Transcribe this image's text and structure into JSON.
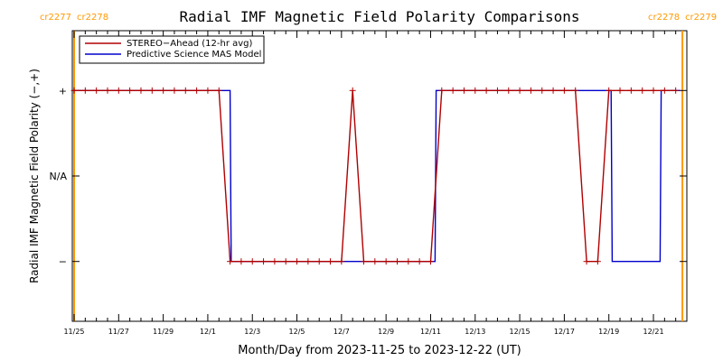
{
  "chart_data": {
    "type": "line",
    "title": "Radial IMF Magnetic Field Polarity Comparisons",
    "xlabel": "Month/Day from 2023-11-25 to 2023-12-22 (UT)",
    "ylabel": "Radial IMF Magnetic Field Polarity (−,+)",
    "xlim": [
      0,
      27.5
    ],
    "ylim": [
      -1.7,
      1.7
    ],
    "x_ticks": [
      {
        "x": 0,
        "label": "11/25"
      },
      {
        "x": 2,
        "label": "11/27"
      },
      {
        "x": 4,
        "label": "11/29"
      },
      {
        "x": 6,
        "label": "12/1"
      },
      {
        "x": 8,
        "label": "12/3"
      },
      {
        "x": 10,
        "label": "12/5"
      },
      {
        "x": 12,
        "label": "12/7"
      },
      {
        "x": 14,
        "label": "12/9"
      },
      {
        "x": 16,
        "label": "12/11"
      },
      {
        "x": 18,
        "label": "12/13"
      },
      {
        "x": 20,
        "label": "12/15"
      },
      {
        "x": 22,
        "label": "12/17"
      },
      {
        "x": 24,
        "label": "12/19"
      },
      {
        "x": 26,
        "label": "12/21"
      }
    ],
    "y_ticks": [
      {
        "y": 1,
        "label": "+"
      },
      {
        "y": 0,
        "label": "N/A"
      },
      {
        "y": -1,
        "label": "−"
      }
    ],
    "carrington": [
      {
        "x": 0,
        "left": "cr2277",
        "right": "cr2278"
      },
      {
        "x": 27.3,
        "left": "cr2278",
        "right": "cr2279"
      }
    ],
    "legend": {
      "position": "top-left"
    },
    "colors": {
      "stereo": "#b00000",
      "model": "#0000cc",
      "carrington": "#ff9900",
      "axes": "#000000"
    },
    "series": [
      {
        "name": "STEREO−Ahead (12-hr avg)",
        "points": [
          [
            0,
            1
          ],
          [
            0.5,
            1
          ],
          [
            1,
            1
          ],
          [
            1.5,
            1
          ],
          [
            2,
            1
          ],
          [
            2.5,
            1
          ],
          [
            3,
            1
          ],
          [
            3.5,
            1
          ],
          [
            4,
            1
          ],
          [
            4.5,
            1
          ],
          [
            5,
            1
          ],
          [
            5.5,
            1
          ],
          [
            6,
            1
          ],
          [
            6.5,
            1
          ],
          [
            7,
            -1
          ],
          [
            7.5,
            -1
          ],
          [
            8,
            -1
          ],
          [
            8.5,
            -1
          ],
          [
            9,
            -1
          ],
          [
            9.5,
            -1
          ],
          [
            10,
            -1
          ],
          [
            10.5,
            -1
          ],
          [
            11,
            -1
          ],
          [
            11.5,
            -1
          ],
          [
            12,
            -1
          ],
          [
            12.5,
            1
          ],
          [
            13,
            -1
          ],
          [
            13.5,
            -1
          ],
          [
            14,
            -1
          ],
          [
            14.5,
            -1
          ],
          [
            15,
            -1
          ],
          [
            15.5,
            -1
          ],
          [
            16,
            -1
          ],
          [
            16.5,
            1
          ],
          [
            17,
            1
          ],
          [
            17.5,
            1
          ],
          [
            18,
            1
          ],
          [
            18.5,
            1
          ],
          [
            19,
            1
          ],
          [
            19.5,
            1
          ],
          [
            20,
            1
          ],
          [
            20.5,
            1
          ],
          [
            21,
            1
          ],
          [
            21.5,
            1
          ],
          [
            22,
            1
          ],
          [
            22.5,
            1
          ],
          [
            23,
            -1
          ],
          [
            23.5,
            -1
          ],
          [
            24,
            1
          ],
          [
            24.5,
            1
          ],
          [
            25,
            1
          ],
          [
            25.5,
            1
          ],
          [
            26,
            1
          ],
          [
            26.5,
            1
          ],
          [
            27,
            1
          ]
        ]
      },
      {
        "name": "Predictive Science MAS Model",
        "points": [
          [
            0,
            1
          ],
          [
            7.0,
            1
          ],
          [
            7.05,
            -1
          ],
          [
            16.2,
            -1
          ],
          [
            16.25,
            1
          ],
          [
            24.1,
            1
          ],
          [
            24.15,
            -1
          ],
          [
            26.3,
            -1
          ],
          [
            26.35,
            1
          ],
          [
            27.2,
            1
          ]
        ]
      }
    ]
  }
}
